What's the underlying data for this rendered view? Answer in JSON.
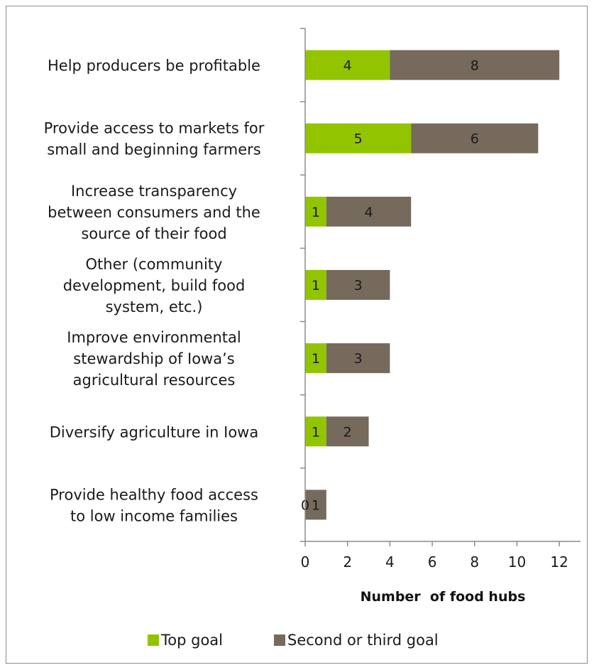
{
  "chart_data": {
    "type": "bar",
    "orientation": "horizontal",
    "stacked": true,
    "categories": [
      "Help producers be profitable",
      "Provide access to markets for small and beginning farmers",
      "Increase transparency between consumers and the source of their food",
      "Other (community development, build food system, etc.)",
      "Improve environmental stewardship of Iowa’s agricultural resources",
      "Diversify agriculture in Iowa",
      "Provide healthy food access to low income families"
    ],
    "category_lines": [
      [
        "Help producers be profitable"
      ],
      [
        "Provide access to markets for",
        "small and beginning farmers"
      ],
      [
        "Increase transparency",
        "between consumers and the",
        "source of their food"
      ],
      [
        "Other (community",
        "development, build food",
        "system, etc.)"
      ],
      [
        "Improve environmental",
        "stewardship of Iowa’s",
        "agricultural resources"
      ],
      [
        "Diversify agriculture in Iowa"
      ],
      [
        "Provide healthy food access",
        "to low income families"
      ]
    ],
    "series": [
      {
        "name": "Top goal",
        "values": [
          4,
          5,
          1,
          1,
          1,
          1,
          0
        ],
        "color": "#92c400"
      },
      {
        "name": "Second or third goal",
        "values": [
          8,
          6,
          4,
          3,
          3,
          2,
          1
        ],
        "color": "#756a5b"
      }
    ],
    "xlabel": "Number  of food hubs",
    "xlim": [
      0,
      13
    ],
    "xticks": [
      0,
      2,
      4,
      6,
      8,
      10,
      12
    ],
    "grid": false,
    "legend_position": "bottom"
  }
}
